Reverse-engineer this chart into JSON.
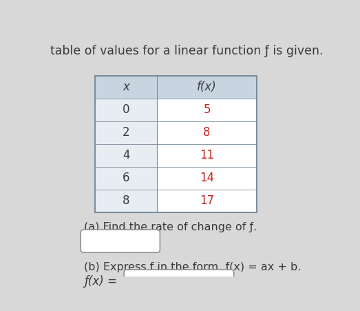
{
  "title": "table of values for a linear function ƒ is given.",
  "title_fontsize": 12.5,
  "table_x_values": [
    "x",
    "0",
    "2",
    "4",
    "6",
    "8"
  ],
  "table_fx_values": [
    "f(x)",
    "5",
    "8",
    "11",
    "14",
    "17"
  ],
  "header_bg": "#c8d4e0",
  "x_col_bg": "#e8edf2",
  "fx_col_bg": "#ffffff",
  "part_a_text": "(a) Find the rate of change of ƒ.",
  "part_b_text": "(b) Express ƒ in the form  ƒ(x) = ax + b.",
  "fx_label": "ƒ(x) =",
  "text_color_dark": "#3a3a3a",
  "text_color_red": "#cc2222",
  "bg_color": "#d8d8d8",
  "border_color": "#8a8a8a",
  "table_border_color": "#7a8a9a"
}
